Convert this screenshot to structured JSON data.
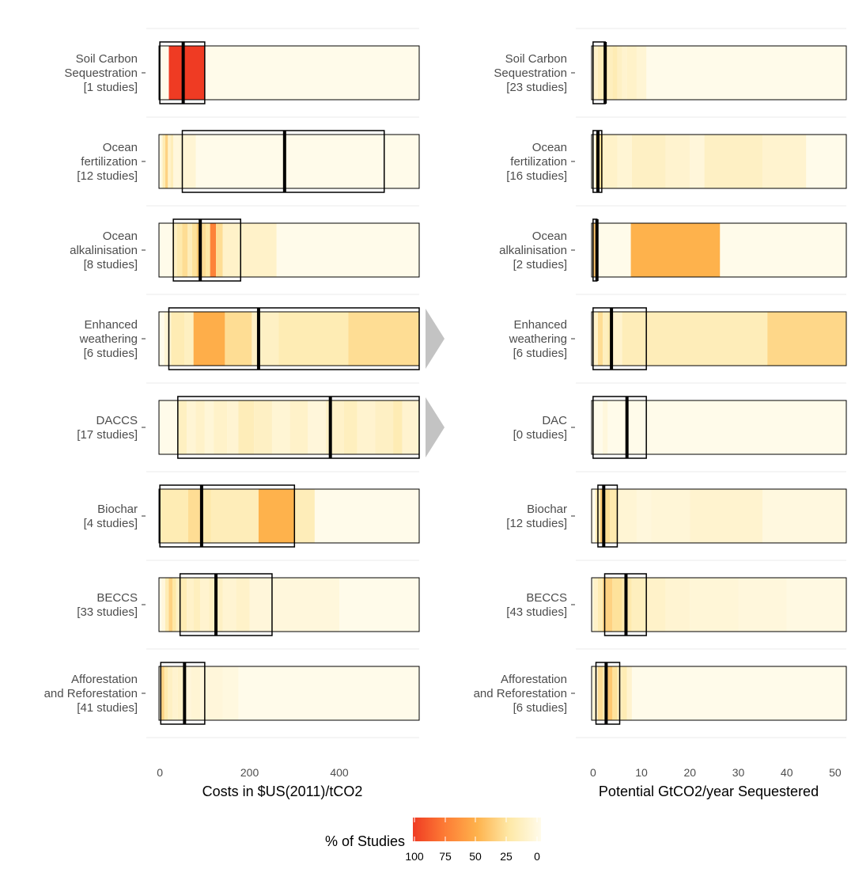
{
  "colors": {
    "grid": "#ebebeb",
    "frame": "#000000",
    "arrow": "#c3c3c3",
    "scale_low": "#fffbea",
    "scale_25": "#fee8a6",
    "scale_50": "#feb24c",
    "scale_75": "#fd7c35",
    "scale_high": "#ef3b23"
  },
  "chart_data": [
    {
      "type": "heatmap",
      "panel": "costs",
      "xlabel": "Costs in $US(2011)/tCO2",
      "xlim": [
        -2,
        578
      ],
      "xticks": [
        0,
        200,
        400
      ],
      "rows": [
        {
          "label": [
            "Soil Carbon",
            "Sequestration",
            "[1 studies]"
          ],
          "cells": [
            [
              20,
              100,
              100
            ]
          ],
          "median": 52,
          "box": [
            0,
            100
          ]
        },
        {
          "label": [
            "Ocean",
            "fertilization",
            "[12 studies]"
          ],
          "cells": [
            [
              2,
              6,
              5
            ],
            [
              6,
              12,
              20
            ],
            [
              12,
              18,
              35
            ],
            [
              18,
              24,
              12
            ],
            [
              24,
              30,
              18
            ],
            [
              30,
              45,
              5
            ],
            [
              45,
              80,
              8
            ]
          ],
          "median": 278,
          "box": [
            50,
            500
          ]
        },
        {
          "label": [
            "Ocean",
            "alkalinisation",
            "[8 studies]"
          ],
          "cells": [
            [
              28,
              38,
              15
            ],
            [
              38,
              50,
              22
            ],
            [
              50,
              62,
              30
            ],
            [
              62,
              72,
              18
            ],
            [
              72,
              82,
              28
            ],
            [
              82,
              92,
              40
            ],
            [
              92,
              102,
              30
            ],
            [
              102,
              112,
              25
            ],
            [
              112,
              125,
              72
            ],
            [
              125,
              140,
              30
            ],
            [
              140,
              260,
              12
            ]
          ],
          "median": 90,
          "box": [
            30,
            180
          ]
        },
        {
          "label": [
            "Enhanced",
            "weathering",
            "[6 studies]"
          ],
          "cells": [
            [
              10,
              25,
              8
            ],
            [
              25,
              55,
              20
            ],
            [
              55,
              75,
              15
            ],
            [
              75,
              145,
              52
            ],
            [
              145,
              205,
              30
            ],
            [
              205,
              265,
              14
            ],
            [
              265,
              420,
              20
            ],
            [
              420,
              578,
              30
            ]
          ],
          "median": 220,
          "box": [
            20,
            578
          ]
        },
        {
          "label": [
            "DACCS",
            "[17 studies]"
          ],
          "cells": [
            [
              40,
              60,
              15
            ],
            [
              60,
              80,
              8
            ],
            [
              80,
              100,
              12
            ],
            [
              100,
              120,
              7
            ],
            [
              120,
              150,
              12
            ],
            [
              150,
              175,
              9
            ],
            [
              175,
              210,
              18
            ],
            [
              210,
              250,
              14
            ],
            [
              250,
              290,
              8
            ],
            [
              290,
              330,
              12
            ],
            [
              330,
              370,
              6
            ],
            [
              370,
              410,
              12
            ],
            [
              410,
              440,
              16
            ],
            [
              440,
              480,
              10
            ],
            [
              480,
              520,
              14
            ],
            [
              520,
              540,
              20
            ],
            [
              540,
              578,
              10
            ]
          ],
          "median": 380,
          "box": [
            40,
            578
          ]
        },
        {
          "label": [
            "Biochar",
            "[4 studies]"
          ],
          "cells": [
            [
              0,
              63,
              20
            ],
            [
              63,
              90,
              30
            ],
            [
              90,
              115,
              22
            ],
            [
              115,
              220,
              18
            ],
            [
              220,
              300,
              50
            ],
            [
              300,
              345,
              18
            ]
          ],
          "median": 93,
          "box": [
            0,
            300
          ]
        },
        {
          "label": [
            "BECCS",
            "[33 studies]"
          ],
          "cells": [
            [
              4,
              12,
              5
            ],
            [
              12,
              20,
              20
            ],
            [
              20,
              28,
              35
            ],
            [
              28,
              36,
              25
            ],
            [
              36,
              46,
              14
            ],
            [
              46,
              60,
              20
            ],
            [
              60,
              75,
              12
            ],
            [
              75,
              90,
              16
            ],
            [
              90,
              110,
              10
            ],
            [
              110,
              140,
              14
            ],
            [
              140,
              170,
              9
            ],
            [
              170,
              200,
              12
            ],
            [
              200,
              250,
              6
            ],
            [
              250,
              400,
              5
            ]
          ],
          "median": 125,
          "box": [
            45,
            250
          ]
        },
        {
          "label": [
            "Afforestation",
            "and Reforestation",
            "[41 studies]"
          ],
          "cells": [
            [
              2,
              10,
              35
            ],
            [
              10,
              18,
              22
            ],
            [
              18,
              28,
              14
            ],
            [
              28,
              40,
              10
            ],
            [
              40,
              55,
              12
            ],
            [
              55,
              70,
              6
            ],
            [
              70,
              90,
              8
            ],
            [
              90,
              110,
              5
            ],
            [
              110,
              140,
              6
            ],
            [
              140,
              175,
              4
            ]
          ],
          "median": 55,
          "box": [
            2,
            100
          ]
        }
      ]
    },
    {
      "type": "heatmap",
      "panel": "potential",
      "xlabel": "Potential GtCO2/year Sequestered",
      "xlim": [
        -0.3,
        52.3
      ],
      "xticks": [
        0,
        10,
        20,
        30,
        40,
        50
      ],
      "rows": [
        {
          "label": [
            "Soil Carbon",
            "Sequestration",
            "[23 studies]"
          ],
          "cells": [
            [
              0,
              1,
              12
            ],
            [
              1,
              2,
              18
            ],
            [
              2,
              3,
              22
            ],
            [
              3,
              4,
              16
            ],
            [
              4,
              5,
              20
            ],
            [
              5,
              6,
              14
            ],
            [
              6,
              7,
              10
            ],
            [
              7,
              9,
              12
            ],
            [
              9,
              11,
              8
            ]
          ],
          "median": 2.5,
          "box": [
            0,
            2.5
          ]
        },
        {
          "label": [
            "Ocean",
            "fertilization",
            "[16 studies]"
          ],
          "cells": [
            [
              0.5,
              2,
              30
            ],
            [
              2,
              5,
              12
            ],
            [
              5,
              8,
              8
            ],
            [
              8,
              15,
              14
            ],
            [
              15,
              20,
              10
            ],
            [
              20,
              23,
              6
            ],
            [
              23,
              35,
              14
            ],
            [
              35,
              44,
              10
            ]
          ],
          "median": 1,
          "box": [
            0,
            1.8
          ]
        },
        {
          "label": [
            "Ocean",
            "alkalinisation",
            "[2 studies]"
          ],
          "cells": [
            [
              0,
              0.8,
              40
            ],
            [
              7.8,
              26.2,
              50
            ]
          ],
          "median": 0.8,
          "box": [
            0,
            0.8
          ]
        },
        {
          "label": [
            "Enhanced",
            "weathering",
            "[6 studies]"
          ],
          "cells": [
            [
              0,
              1,
              12
            ],
            [
              1,
              2,
              30
            ],
            [
              2,
              3,
              16
            ],
            [
              3,
              4,
              22
            ],
            [
              4,
              6,
              10
            ],
            [
              6,
              36,
              18
            ],
            [
              36,
              52.3,
              33
            ]
          ],
          "median": 3.8,
          "box": [
            0,
            11
          ]
        },
        {
          "label": [
            "DAC",
            "[0 studies]"
          ],
          "cells": [
            [
              2,
              3,
              5
            ]
          ],
          "median": 7,
          "box": [
            0,
            11
          ]
        },
        {
          "label": [
            "Biochar",
            "[12 studies]"
          ],
          "cells": [
            [
              0.5,
              1.5,
              20
            ],
            [
              1.5,
              2.5,
              40
            ],
            [
              2.5,
              3.5,
              30
            ],
            [
              3.5,
              5,
              22
            ],
            [
              5,
              9,
              8
            ],
            [
              9,
              12,
              5
            ],
            [
              12,
              20,
              7
            ],
            [
              20,
              35,
              10
            ],
            [
              35,
              52.3,
              4
            ]
          ],
          "median": 2.2,
          "box": [
            1,
            5
          ]
        },
        {
          "label": [
            "BECCS",
            "[43 studies]"
          ],
          "cells": [
            [
              0,
              1,
              12
            ],
            [
              1,
              2,
              20
            ],
            [
              2,
              4,
              35
            ],
            [
              4,
              6,
              28
            ],
            [
              6,
              8,
              22
            ],
            [
              8,
              11,
              16
            ],
            [
              11,
              15,
              12
            ],
            [
              15,
              20,
              9
            ],
            [
              20,
              30,
              7
            ],
            [
              30,
              40,
              5
            ],
            [
              40,
              52.3,
              3
            ]
          ],
          "median": 6.8,
          "box": [
            2.4,
            11
          ]
        },
        {
          "label": [
            "Afforestation",
            "and Reforestation",
            "[6 studies]"
          ],
          "cells": [
            [
              0,
              1,
              10
            ],
            [
              1,
              2,
              30
            ],
            [
              2,
              3,
              22
            ],
            [
              3,
              4,
              40
            ],
            [
              4,
              5,
              28
            ],
            [
              5,
              6,
              16
            ],
            [
              6,
              7,
              20
            ],
            [
              7,
              8,
              10
            ]
          ],
          "median": 2.7,
          "box": [
            0.6,
            5.5
          ]
        }
      ]
    }
  ],
  "legend": {
    "title": "% of Studies",
    "ticks": [
      "100",
      "75",
      "50",
      "25",
      "0"
    ]
  }
}
